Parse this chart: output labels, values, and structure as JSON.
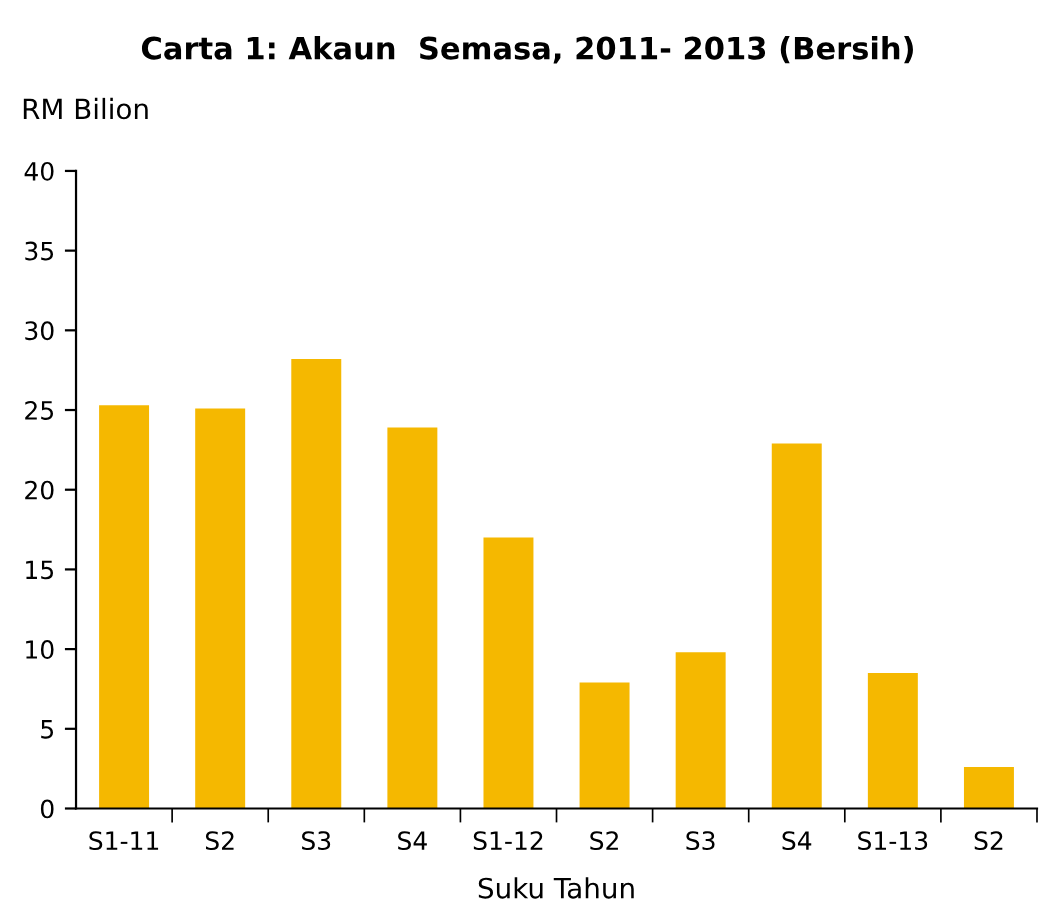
{
  "chart_data": {
    "type": "bar",
    "title": "Carta 1: Akaun  Semasa, 2011- 2013 (Bersih)",
    "ylabel": "RM Bilion",
    "xlabel": "Suku Tahun",
    "categories": [
      "S1-11",
      "S2",
      "S3",
      "S4",
      "S1-12",
      "S2",
      "S3",
      "S4",
      "S1-13",
      "S2"
    ],
    "values": [
      25.3,
      25.1,
      28.2,
      23.9,
      17.0,
      7.9,
      9.8,
      22.9,
      8.5,
      2.6
    ],
    "color": "#f5b800",
    "ylim": [
      0,
      40
    ],
    "yticks": [
      0,
      5,
      10,
      15,
      20,
      25,
      30,
      35,
      40
    ],
    "grid": false,
    "legend": false
  }
}
